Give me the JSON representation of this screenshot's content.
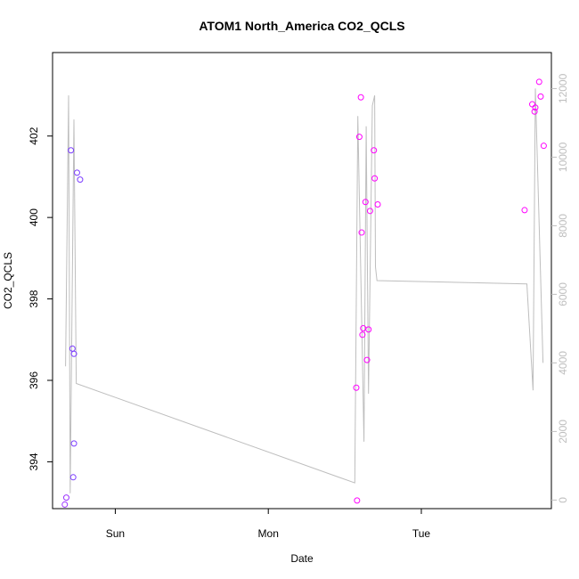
{
  "chart_data": {
    "type": "scatter",
    "title": "ATOM1 North_America CO2_QCLS",
    "xlabel": "Date",
    "ylabel": "CO2_QCLS",
    "x_ticks": [
      "Sun",
      "Mon",
      "Tue"
    ],
    "y_ticks": [
      "394",
      "396",
      "398",
      "400",
      "402"
    ],
    "y_right_ticks": [
      "0",
      "2000",
      "4000",
      "6000",
      "8000",
      "10000",
      "12000"
    ],
    "x_unit": "days",
    "x_range": [
      -0.41,
      2.85
    ],
    "y_range": [
      392.85,
      404.05
    ],
    "y_right_range": [
      -250,
      13050
    ],
    "grid": false,
    "colors": {
      "axis": "#000000",
      "right_axis": "#bebebe",
      "line": "#bebebe"
    },
    "series": [
      {
        "type": "points",
        "points": [
          {
            "x": -0.33,
            "y": 392.95,
            "color": "#9b30ff"
          },
          {
            "x": -0.32,
            "y": 393.12,
            "color": "#9b30ff"
          },
          {
            "x": -0.29,
            "y": 401.65,
            "color": "#7b3cff"
          },
          {
            "x": -0.28,
            "y": 396.78,
            "color": "#7b3cff"
          },
          {
            "x": -0.27,
            "y": 396.65,
            "color": "#7b3cff"
          },
          {
            "x": -0.27,
            "y": 394.45,
            "color": "#7b3cff"
          },
          {
            "x": -0.275,
            "y": 393.62,
            "color": "#7b3cff"
          },
          {
            "x": -0.25,
            "y": 401.1,
            "color": "#7b3cff"
          },
          {
            "x": -0.23,
            "y": 400.93,
            "color": "#7b3cff"
          },
          {
            "x": 1.58,
            "y": 393.05,
            "color": "#ff00ff"
          },
          {
            "x": 1.575,
            "y": 395.82,
            "color": "#ff00ff"
          },
          {
            "x": 1.595,
            "y": 401.98,
            "color": "#ff00ff"
          },
          {
            "x": 1.605,
            "y": 402.95,
            "color": "#ff00ff"
          },
          {
            "x": 1.61,
            "y": 399.63,
            "color": "#ff00ff"
          },
          {
            "x": 1.615,
            "y": 397.12,
            "color": "#ff00ff"
          },
          {
            "x": 1.62,
            "y": 397.28,
            "color": "#ff00ff"
          },
          {
            "x": 1.635,
            "y": 400.38,
            "color": "#ff00ff"
          },
          {
            "x": 1.645,
            "y": 396.5,
            "color": "#ff00ff"
          },
          {
            "x": 1.655,
            "y": 397.25,
            "color": "#ff00ff"
          },
          {
            "x": 1.665,
            "y": 400.16,
            "color": "#ff00ff"
          },
          {
            "x": 1.69,
            "y": 401.65,
            "color": "#ff00ff"
          },
          {
            "x": 1.695,
            "y": 400.96,
            "color": "#ff00ff"
          },
          {
            "x": 1.715,
            "y": 400.32,
            "color": "#ff00ff"
          },
          {
            "x": 2.675,
            "y": 400.18,
            "color": "#ff00ff"
          },
          {
            "x": 2.725,
            "y": 402.78,
            "color": "#ff00ff"
          },
          {
            "x": 2.74,
            "y": 402.6,
            "color": "#ff00ff"
          },
          {
            "x": 2.745,
            "y": 402.7,
            "color": "#ff00ff"
          },
          {
            "x": 2.77,
            "y": 403.33,
            "color": "#ff00ff"
          },
          {
            "x": 2.78,
            "y": 402.97,
            "color": "#ff00ff"
          },
          {
            "x": 2.8,
            "y": 401.76,
            "color": "#ff00ff"
          }
        ]
      },
      {
        "type": "line",
        "axis": "right",
        "points": [
          [
            -0.325,
            3900
          ],
          [
            -0.305,
            11800
          ],
          [
            -0.295,
            200
          ],
          [
            -0.27,
            11100
          ],
          [
            -0.255,
            3400
          ],
          [
            1.565,
            500
          ],
          [
            1.585,
            11200
          ],
          [
            1.625,
            1700
          ],
          [
            1.64,
            10900
          ],
          [
            1.655,
            3100
          ],
          [
            1.68,
            11500
          ],
          [
            1.695,
            11800
          ],
          [
            1.7,
            6800
          ],
          [
            1.71,
            6400
          ],
          [
            2.69,
            6300
          ],
          [
            2.73,
            3200
          ],
          [
            2.745,
            12000
          ],
          [
            2.795,
            4000
          ]
        ]
      }
    ]
  }
}
